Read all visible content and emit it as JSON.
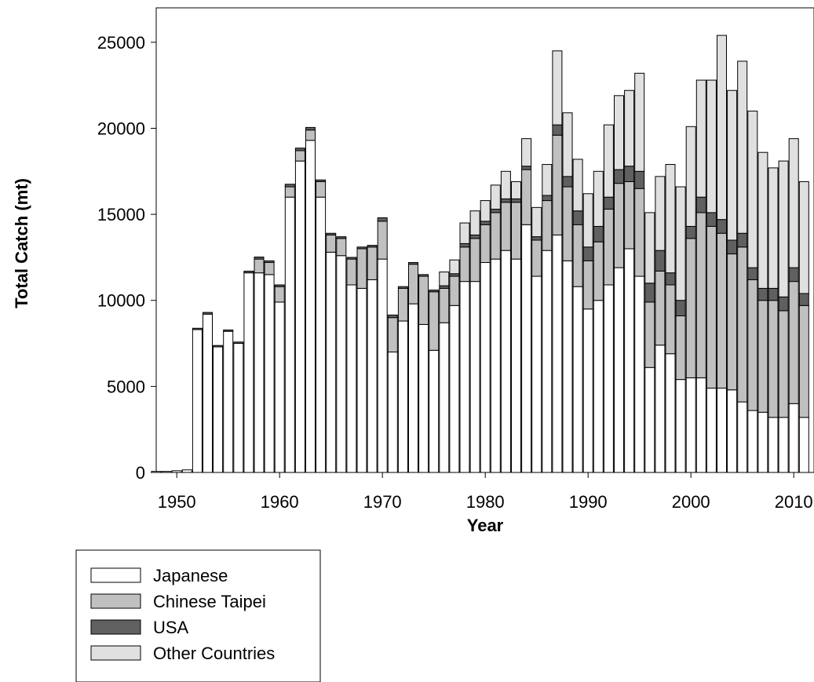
{
  "chart_data": {
    "type": "bar",
    "stacked": true,
    "title": "",
    "xlabel": "Year",
    "ylabel": "Total Catch (mt)",
    "xlim": [
      1948,
      2012
    ],
    "ylim": [
      0,
      27000
    ],
    "x_ticks": [
      1950,
      1960,
      1970,
      1980,
      1990,
      2000,
      2010
    ],
    "y_ticks": [
      0,
      5000,
      10000,
      15000,
      20000,
      25000
    ],
    "grid": false,
    "legend_position": "bottom-left, outside plot",
    "years": [
      1948,
      1949,
      1950,
      1951,
      1952,
      1953,
      1954,
      1955,
      1956,
      1957,
      1958,
      1959,
      1960,
      1961,
      1962,
      1963,
      1964,
      1965,
      1966,
      1967,
      1968,
      1969,
      1970,
      1971,
      1972,
      1973,
      1974,
      1975,
      1976,
      1977,
      1978,
      1979,
      1980,
      1981,
      1982,
      1983,
      1984,
      1985,
      1986,
      1987,
      1988,
      1989,
      1990,
      1991,
      1992,
      1993,
      1994,
      1995,
      1996,
      1997,
      1998,
      1999,
      2000,
      2001,
      2002,
      2003,
      2004,
      2005,
      2006,
      2007,
      2008,
      2009,
      2010,
      2011
    ],
    "series": [
      {
        "name": "Japanese",
        "color": "#ffffff",
        "values": [
          60,
          60,
          100,
          150,
          8300,
          9200,
          7300,
          8200,
          7500,
          11600,
          11600,
          11500,
          9900,
          16000,
          18100,
          19300,
          16000,
          12800,
          12600,
          10900,
          10700,
          11200,
          12400,
          7000,
          8800,
          9800,
          8600,
          7100,
          8700,
          9700,
          11100,
          11100,
          12200,
          12400,
          12900,
          12400,
          14400,
          11400,
          12900,
          13800,
          12300,
          10800,
          9500,
          10000,
          10900,
          11900,
          13000,
          11400,
          6100,
          7400,
          6900,
          5400,
          5500,
          5500,
          4900,
          4900,
          4800,
          4100,
          3600,
          3500,
          3200,
          3200,
          4000,
          3200
        ]
      },
      {
        "name": "Chinese Taipei",
        "color": "#c0c0c0",
        "values": [
          0,
          0,
          0,
          0,
          0,
          0,
          0,
          0,
          0,
          0,
          800,
          700,
          900,
          600,
          600,
          600,
          900,
          1000,
          1000,
          1500,
          2300,
          1900,
          2200,
          2000,
          1900,
          2300,
          2800,
          3400,
          2000,
          1700,
          2000,
          2500,
          2200,
          2700,
          2800,
          3300,
          3200,
          2100,
          2900,
          5800,
          4300,
          3600,
          2800,
          3400,
          4400,
          4900,
          3900,
          5100,
          3800,
          4300,
          4000,
          3700,
          8100,
          9600,
          9400,
          9000,
          7900,
          9000,
          7600,
          6500,
          6800,
          6200,
          7100,
          6500
        ]
      },
      {
        "name": "USA",
        "color": "#606060",
        "values": [
          0,
          0,
          0,
          0,
          80,
          100,
          80,
          80,
          80,
          100,
          120,
          100,
          100,
          150,
          150,
          150,
          100,
          100,
          100,
          100,
          100,
          100,
          200,
          150,
          100,
          100,
          100,
          100,
          150,
          150,
          200,
          200,
          200,
          200,
          200,
          200,
          200,
          200,
          300,
          600,
          600,
          800,
          800,
          900,
          700,
          800,
          900,
          1000,
          1100,
          1200,
          700,
          900,
          700,
          900,
          800,
          800,
          800,
          800,
          700,
          700,
          700,
          800,
          800,
          700
        ]
      },
      {
        "name": "Other Countries",
        "color": "#e0e0e0",
        "values": [
          0,
          0,
          0,
          0,
          0,
          0,
          0,
          0,
          0,
          0,
          0,
          0,
          0,
          0,
          0,
          0,
          0,
          0,
          0,
          0,
          0,
          0,
          0,
          0,
          0,
          0,
          0,
          0,
          800,
          800,
          1200,
          1400,
          1200,
          1400,
          1600,
          1000,
          1600,
          1700,
          1800,
          4300,
          3700,
          3000,
          3100,
          3200,
          4200,
          4300,
          4400,
          5700,
          4100,
          4300,
          6300,
          6600,
          5800,
          6800,
          7700,
          10700,
          8700,
          10000,
          9100,
          7900,
          7000,
          7900,
          7500,
          6500
        ]
      }
    ]
  }
}
